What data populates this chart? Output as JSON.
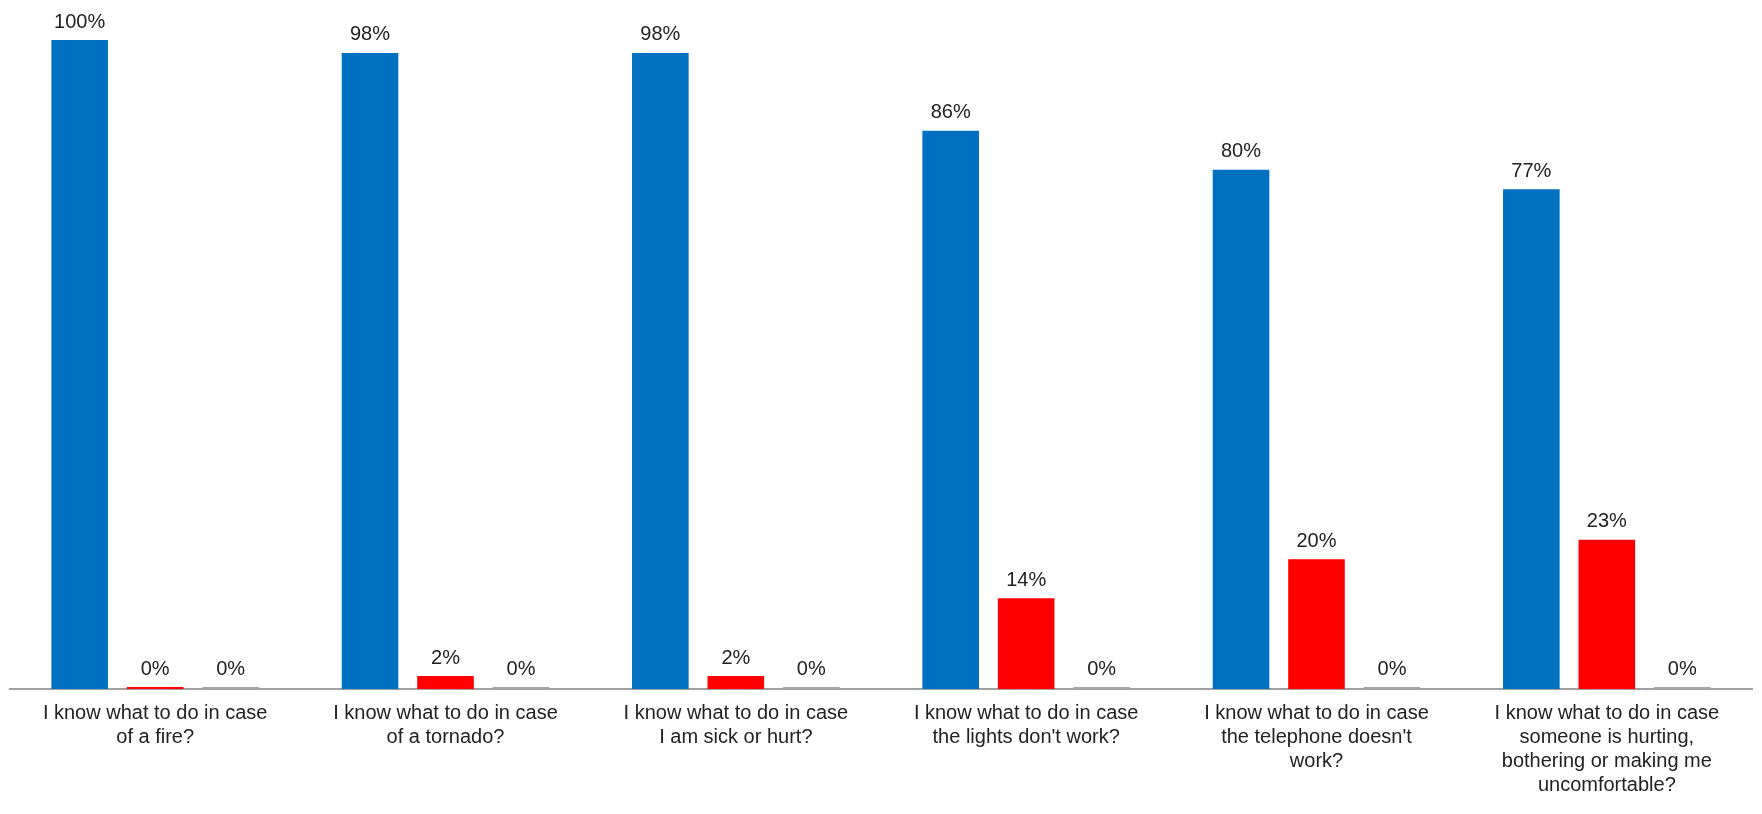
{
  "chart_data": {
    "type": "bar",
    "categories": [
      "I know what to do in case of a fire?",
      "I know what to do in case of a tornado?",
      "I know what to do in case I am sick or hurt?",
      "I know what to do in case the lights don't work?",
      "I know what to do in case the telephone doesn't work?",
      "I know what to do in case someone is hurting, bothering or making me uncomfortable?"
    ],
    "series": [
      {
        "color": "#0070c0",
        "values": [
          100,
          98,
          98,
          86,
          80,
          77
        ],
        "value_labels": [
          "100%",
          "98%",
          "98%",
          "86%",
          "80%",
          "77%"
        ]
      },
      {
        "color": "#ff0000",
        "values": [
          0,
          2,
          2,
          14,
          20,
          23
        ],
        "value_labels": [
          "0%",
          "2%",
          "2%",
          "14%",
          "20%",
          "23%"
        ]
      },
      {
        "color": "#a5a5a5",
        "values": [
          0,
          0,
          0,
          0,
          0,
          0
        ],
        "value_labels": [
          "0%",
          "0%",
          "0%",
          "0%",
          "0%",
          "0%"
        ]
      }
    ],
    "ylim": [
      0,
      100
    ],
    "tick_labels": "x",
    "grid": false,
    "legend": false
  }
}
